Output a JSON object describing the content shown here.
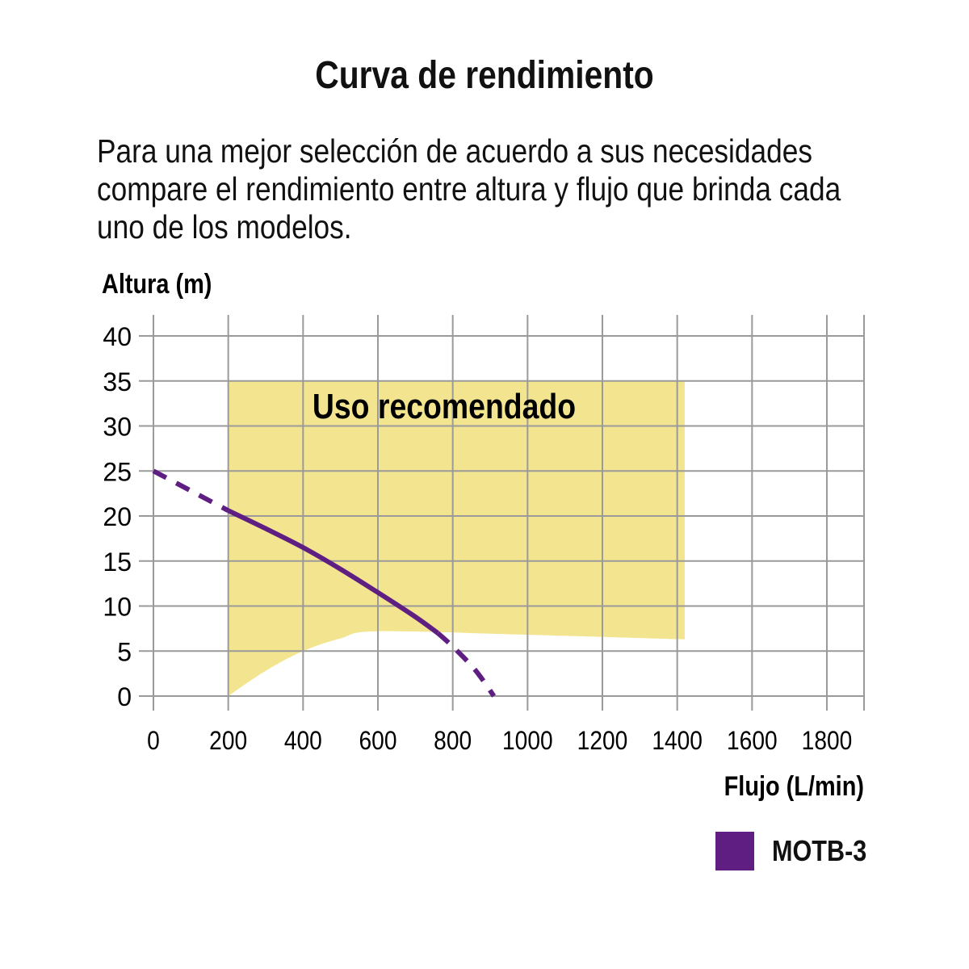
{
  "chart_data": {
    "type": "line",
    "title": "Curva de rendimiento",
    "subtitle": "Para una mejor selección de acuerdo a sus necesidades compare el rendimiento entre altura y flujo que brinda cada uno de los modelos.",
    "xlabel": "Flujo (L/min)",
    "ylabel": "Altura (m)",
    "xlim": [
      0,
      1900
    ],
    "ylim": [
      0,
      40
    ],
    "xticks": [
      0,
      200,
      400,
      600,
      800,
      1000,
      1200,
      1400,
      1600,
      1800
    ],
    "yticks": [
      0,
      5,
      10,
      15,
      20,
      25,
      30,
      35,
      40
    ],
    "grid": true,
    "region": {
      "label": "Uso recomendado",
      "color": "#f3e58f",
      "top": [
        [
          200,
          35
        ],
        [
          1420,
          35
        ]
      ],
      "bottom": [
        [
          200,
          0
        ],
        [
          300,
          2.8
        ],
        [
          400,
          5
        ],
        [
          500,
          6.4
        ],
        [
          600,
          7.2
        ],
        [
          1000,
          6.8
        ],
        [
          1420,
          6.3
        ]
      ]
    },
    "series": [
      {
        "name": "MOTB-3",
        "color": "#5f1f82",
        "dashed_start": [
          [
            0,
            25
          ],
          [
            100,
            22.8
          ],
          [
            200,
            20.6
          ]
        ],
        "solid": [
          [
            200,
            20.6
          ],
          [
            300,
            18.6
          ],
          [
            400,
            16.5
          ],
          [
            500,
            14.1
          ],
          [
            600,
            11.5
          ],
          [
            700,
            8.8
          ],
          [
            760,
            7
          ]
        ],
        "dashed_end": [
          [
            760,
            7
          ],
          [
            800,
            5.5
          ],
          [
            860,
            2.9
          ],
          [
            910,
            0
          ]
        ]
      }
    ],
    "legend": "bottom-right"
  }
}
